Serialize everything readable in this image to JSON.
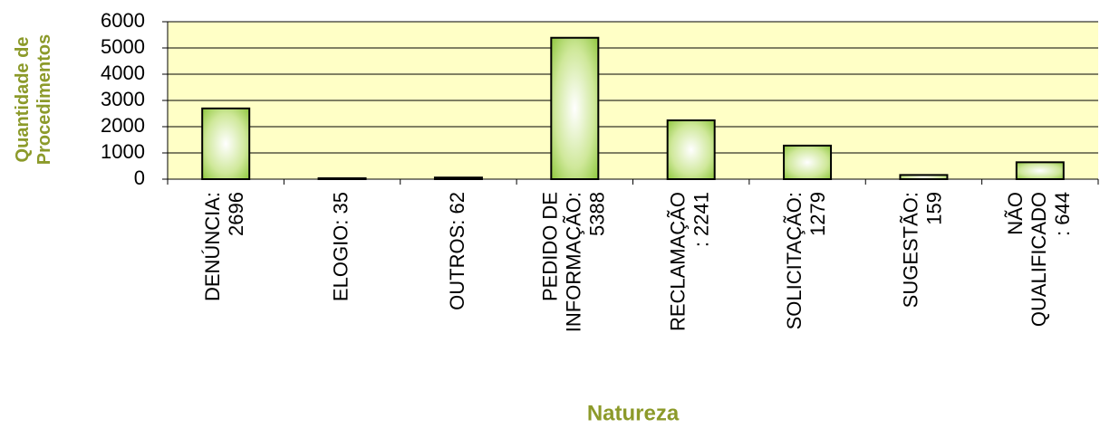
{
  "chart_data": {
    "type": "bar",
    "xlabel": "Natureza",
    "ylabel": "Quantidade de\nProcedimentos",
    "categories": [
      "DENÚNCIA:\n2696",
      "ELOGIO: 35",
      "OUTROS: 62",
      "PEDIDO DE\nINFORMAÇÃO:\n5388",
      "RECLAMAÇÃO\n: 2241",
      "SOLICITAÇÃO:\n1279",
      "SUGESTÃO:\n159",
      "NÃO\nQUALIFICADO\n: 644"
    ],
    "values": [
      2696,
      35,
      62,
      5388,
      2241,
      1279,
      159,
      644
    ],
    "color": "#8fc73e",
    "ylim": [
      0,
      6000
    ],
    "yticks": [
      0,
      1000,
      2000,
      3000,
      4000,
      5000,
      6000
    ],
    "grid": true
  }
}
